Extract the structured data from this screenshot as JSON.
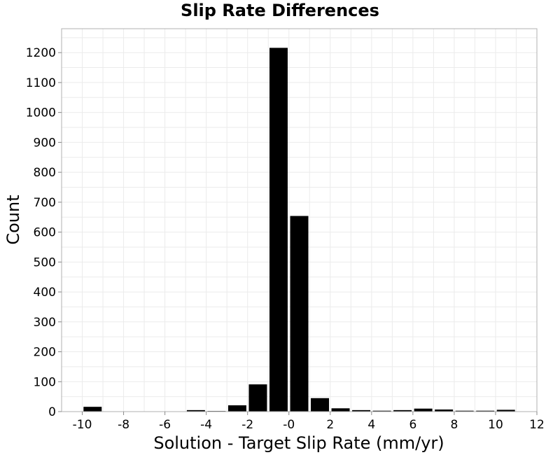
{
  "chart_data": {
    "type": "bar",
    "title": "Slip Rate Differences",
    "xlabel": "Solution - Target Slip Rate (mm/yr)",
    "ylabel": "Count",
    "xlim": [
      -11,
      12
    ],
    "ylim": [
      0,
      1280
    ],
    "xticks": [
      "-10",
      "-8",
      "-6",
      "-4",
      "-2",
      "-0",
      "2",
      "4",
      "6",
      "8",
      "10",
      "12"
    ],
    "xtick_values": [
      -10,
      -8,
      -6,
      -4,
      -2,
      0,
      2,
      4,
      6,
      8,
      10,
      12
    ],
    "yticks": [
      0,
      100,
      200,
      300,
      400,
      500,
      600,
      700,
      800,
      900,
      1000,
      1100,
      1200
    ],
    "grid": true,
    "bin_width": 1,
    "bars": [
      {
        "x": -9.5,
        "value": 16
      },
      {
        "x": -4.5,
        "value": 5
      },
      {
        "x": -3.5,
        "value": 2
      },
      {
        "x": -2.5,
        "value": 21
      },
      {
        "x": -1.5,
        "value": 91
      },
      {
        "x": -0.5,
        "value": 1216
      },
      {
        "x": 0.5,
        "value": 654
      },
      {
        "x": 1.5,
        "value": 45
      },
      {
        "x": 2.5,
        "value": 11
      },
      {
        "x": 3.5,
        "value": 5
      },
      {
        "x": 4.5,
        "value": 3
      },
      {
        "x": 5.5,
        "value": 5
      },
      {
        "x": 6.5,
        "value": 10
      },
      {
        "x": 7.5,
        "value": 7
      },
      {
        "x": 8.5,
        "value": 3
      },
      {
        "x": 9.5,
        "value": 3
      },
      {
        "x": 10.5,
        "value": 6
      }
    ]
  }
}
